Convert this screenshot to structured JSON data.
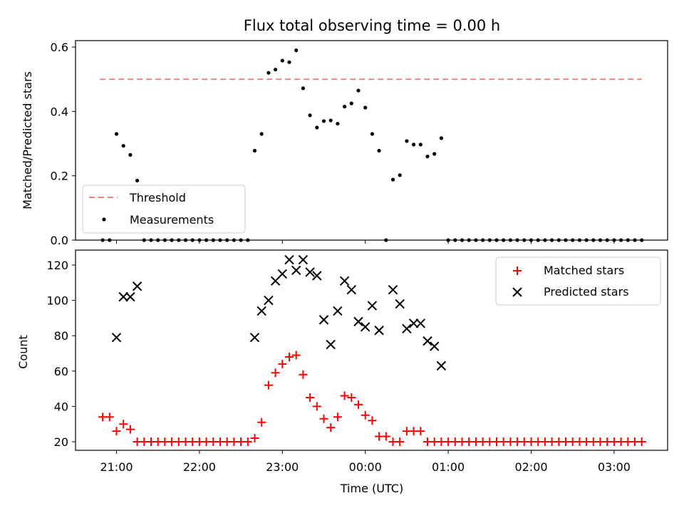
{
  "chart_data": [
    {
      "type": "scatter",
      "title": "Flux total observing time = 0.00 h",
      "xlabel": "",
      "ylabel": "Matched/Predicted stars",
      "ylim": [
        0,
        0.62
      ],
      "yticks": [
        "0.0",
        "0.2",
        "0.4",
        "0.6"
      ],
      "grid": false,
      "legend_position": "lower-left",
      "threshold": {
        "name": "Threshold",
        "value": 0.5,
        "color": "#f08080",
        "style": "dashed",
        "x_range": [
          "20:48",
          "03:20"
        ]
      },
      "series": [
        {
          "name": "Measurements",
          "color": "#000000",
          "marker": "dot",
          "points": [
            [
              "20:50",
              0.0
            ],
            [
              "20:55",
              0.0
            ],
            [
              "21:00",
              0.33
            ],
            [
              "21:05",
              0.293
            ],
            [
              "21:10",
              0.265
            ],
            [
              "21:15",
              0.185
            ],
            [
              "21:20",
              0.0
            ],
            [
              "21:25",
              0.0
            ],
            [
              "21:30",
              0.0
            ],
            [
              "21:35",
              0.0
            ],
            [
              "21:40",
              0.0
            ],
            [
              "21:45",
              0.0
            ],
            [
              "21:50",
              0.0
            ],
            [
              "21:55",
              0.0
            ],
            [
              "22:00",
              0.0
            ],
            [
              "22:05",
              0.0
            ],
            [
              "22:10",
              0.0
            ],
            [
              "22:15",
              0.0
            ],
            [
              "22:20",
              0.0
            ],
            [
              "22:25",
              0.0
            ],
            [
              "22:30",
              0.0
            ],
            [
              "22:35",
              0.0
            ],
            [
              "22:40",
              0.278
            ],
            [
              "22:45",
              0.33
            ],
            [
              "22:50",
              0.52
            ],
            [
              "22:55",
              0.53
            ],
            [
              "23:00",
              0.558
            ],
            [
              "23:05",
              0.553
            ],
            [
              "23:10",
              0.59
            ],
            [
              "23:15",
              0.472
            ],
            [
              "23:20",
              0.388
            ],
            [
              "23:25",
              0.35
            ],
            [
              "23:30",
              0.37
            ],
            [
              "23:35",
              0.372
            ],
            [
              "23:40",
              0.362
            ],
            [
              "23:45",
              0.415
            ],
            [
              "23:50",
              0.425
            ],
            [
              "23:55",
              0.465
            ],
            [
              "00:00",
              0.412
            ],
            [
              "00:05",
              0.33
            ],
            [
              "00:10",
              0.278
            ],
            [
              "00:15",
              0.0
            ],
            [
              "00:20",
              0.188
            ],
            [
              "00:25",
              0.202
            ],
            [
              "00:30",
              0.308
            ],
            [
              "00:35",
              0.297
            ],
            [
              "00:40",
              0.297
            ],
            [
              "00:45",
              0.26
            ],
            [
              "00:50",
              0.268
            ],
            [
              "00:55",
              0.317
            ],
            [
              "01:00",
              0.0
            ],
            [
              "01:05",
              0.0
            ],
            [
              "01:10",
              0.0
            ],
            [
              "01:15",
              0.0
            ],
            [
              "01:20",
              0.0
            ],
            [
              "01:25",
              0.0
            ],
            [
              "01:30",
              0.0
            ],
            [
              "01:35",
              0.0
            ],
            [
              "01:40",
              0.0
            ],
            [
              "01:45",
              0.0
            ],
            [
              "01:50",
              0.0
            ],
            [
              "01:55",
              0.0
            ],
            [
              "02:00",
              0.0
            ],
            [
              "02:05",
              0.0
            ],
            [
              "02:10",
              0.0
            ],
            [
              "02:15",
              0.0
            ],
            [
              "02:20",
              0.0
            ],
            [
              "02:25",
              0.0
            ],
            [
              "02:30",
              0.0
            ],
            [
              "02:35",
              0.0
            ],
            [
              "02:40",
              0.0
            ],
            [
              "02:45",
              0.0
            ],
            [
              "02:50",
              0.0
            ],
            [
              "02:55",
              0.0
            ],
            [
              "03:00",
              0.0
            ],
            [
              "03:05",
              0.0
            ],
            [
              "03:10",
              0.0
            ],
            [
              "03:15",
              0.0
            ],
            [
              "03:20",
              0.0
            ]
          ]
        }
      ]
    },
    {
      "type": "scatter",
      "title": "",
      "xlabel": "Time (UTC)",
      "ylabel": "Count",
      "ylim": [
        15,
        128
      ],
      "yticks": [
        "20",
        "40",
        "60",
        "80",
        "100",
        "120"
      ],
      "xticks": [
        "21:00",
        "22:00",
        "23:00",
        "00:00",
        "01:00",
        "02:00",
        "03:00"
      ],
      "grid": false,
      "legend_position": "upper-right",
      "series": [
        {
          "name": "Matched stars",
          "color": "#ff0000",
          "marker": "plus",
          "points": [
            [
              "20:50",
              34
            ],
            [
              "20:55",
              34
            ],
            [
              "21:00",
              26
            ],
            [
              "21:05",
              30
            ],
            [
              "21:10",
              27
            ],
            [
              "21:15",
              20
            ],
            [
              "21:20",
              20
            ],
            [
              "21:25",
              20
            ],
            [
              "21:30",
              20
            ],
            [
              "21:35",
              20
            ],
            [
              "21:40",
              20
            ],
            [
              "21:45",
              20
            ],
            [
              "21:50",
              20
            ],
            [
              "21:55",
              20
            ],
            [
              "22:00",
              20
            ],
            [
              "22:05",
              20
            ],
            [
              "22:10",
              20
            ],
            [
              "22:15",
              20
            ],
            [
              "22:20",
              20
            ],
            [
              "22:25",
              20
            ],
            [
              "22:30",
              20
            ],
            [
              "22:35",
              20
            ],
            [
              "22:40",
              22
            ],
            [
              "22:45",
              31
            ],
            [
              "22:50",
              52
            ],
            [
              "22:55",
              59
            ],
            [
              "23:00",
              64
            ],
            [
              "23:05",
              68
            ],
            [
              "23:10",
              69
            ],
            [
              "23:15",
              58
            ],
            [
              "23:20",
              45
            ],
            [
              "23:25",
              40
            ],
            [
              "23:30",
              33
            ],
            [
              "23:35",
              28
            ],
            [
              "23:40",
              34
            ],
            [
              "23:45",
              46
            ],
            [
              "23:50",
              45
            ],
            [
              "23:55",
              41
            ],
            [
              "00:00",
              35
            ],
            [
              "00:05",
              32
            ],
            [
              "00:10",
              23
            ],
            [
              "00:15",
              23
            ],
            [
              "00:20",
              20
            ],
            [
              "00:25",
              20
            ],
            [
              "00:30",
              26
            ],
            [
              "00:35",
              26
            ],
            [
              "00:40",
              26
            ],
            [
              "00:45",
              20
            ],
            [
              "00:50",
              20
            ],
            [
              "00:55",
              20
            ],
            [
              "01:00",
              20
            ],
            [
              "01:05",
              20
            ],
            [
              "01:10",
              20
            ],
            [
              "01:15",
              20
            ],
            [
              "01:20",
              20
            ],
            [
              "01:25",
              20
            ],
            [
              "01:30",
              20
            ],
            [
              "01:35",
              20
            ],
            [
              "01:40",
              20
            ],
            [
              "01:45",
              20
            ],
            [
              "01:50",
              20
            ],
            [
              "01:55",
              20
            ],
            [
              "02:00",
              20
            ],
            [
              "02:05",
              20
            ],
            [
              "02:10",
              20
            ],
            [
              "02:15",
              20
            ],
            [
              "02:20",
              20
            ],
            [
              "02:25",
              20
            ],
            [
              "02:30",
              20
            ],
            [
              "02:35",
              20
            ],
            [
              "02:40",
              20
            ],
            [
              "02:45",
              20
            ],
            [
              "02:50",
              20
            ],
            [
              "02:55",
              20
            ],
            [
              "03:00",
              20
            ],
            [
              "03:05",
              20
            ],
            [
              "03:10",
              20
            ],
            [
              "03:15",
              20
            ],
            [
              "03:20",
              20
            ]
          ]
        },
        {
          "name": "Predicted stars",
          "color": "#000000",
          "marker": "x",
          "points": [
            [
              "21:00",
              79
            ],
            [
              "21:05",
              102
            ],
            [
              "21:10",
              102
            ],
            [
              "21:15",
              108
            ],
            [
              "22:40",
              79
            ],
            [
              "22:45",
              94
            ],
            [
              "22:50",
              100
            ],
            [
              "22:55",
              111
            ],
            [
              "23:00",
              115
            ],
            [
              "23:05",
              123
            ],
            [
              "23:10",
              117
            ],
            [
              "23:15",
              123
            ],
            [
              "23:20",
              116
            ],
            [
              "23:25",
              114
            ],
            [
              "23:30",
              89
            ],
            [
              "23:35",
              75
            ],
            [
              "23:40",
              94
            ],
            [
              "23:45",
              111
            ],
            [
              "23:50",
              106
            ],
            [
              "23:55",
              88
            ],
            [
              "00:00",
              85
            ],
            [
              "00:05",
              97
            ],
            [
              "00:10",
              83
            ],
            [
              "00:20",
              106
            ],
            [
              "00:25",
              98
            ],
            [
              "00:30",
              84
            ],
            [
              "00:35",
              87
            ],
            [
              "00:40",
              87
            ],
            [
              "00:45",
              77
            ],
            [
              "00:50",
              74
            ],
            [
              "00:55",
              63
            ]
          ]
        }
      ]
    }
  ]
}
